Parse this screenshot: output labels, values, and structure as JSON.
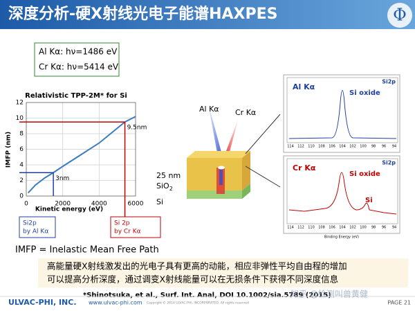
{
  "header": {
    "title": "深度分析-硬X射线光电子能谱HAXPES"
  },
  "energies": [
    "Al Kα: hν=1486 eV",
    "Cr Kα: hν=5414 eV"
  ],
  "imfp_chart": {
    "title": "Relativistic TPP-2M* for Si",
    "x_label": "Kinetic energy (eV)",
    "y_label": "IMFP (nm)",
    "x": [
      100,
      500,
      1000,
      1486,
      2000,
      3000,
      4000,
      5414,
      6000
    ],
    "y": [
      0.4,
      1.4,
      2.3,
      3.0,
      3.8,
      5.3,
      6.8,
      9.5,
      10.2
    ],
    "xlim": [
      0,
      6000
    ],
    "ylim": [
      0,
      12
    ],
    "xticks": [
      0,
      2000,
      4000,
      6000
    ],
    "yticks": [
      0,
      2,
      4,
      6,
      8,
      10,
      12
    ],
    "annotations": [
      {
        "label": "3nm",
        "x": 1486,
        "y": 3,
        "color": "#1f3f9f"
      },
      {
        "label": "9.5nm",
        "x": 5414,
        "y": 9.5,
        "color": "#c00000"
      }
    ]
  },
  "boxes": [
    {
      "lines": [
        "Si2p",
        "by Al Kα"
      ],
      "color": "#1f3f9f"
    },
    {
      "lines": [
        "Si 2p",
        "by Cr Kα"
      ],
      "color": "#c00000"
    }
  ],
  "diagram": {
    "beams": [
      "Al Kα",
      "Cr Kα"
    ],
    "thickness": "25 nm",
    "layer": "SiO",
    "layer_sub": "2",
    "substrate": "Si"
  },
  "spectra": [
    {
      "source": "Al Kα",
      "tag": "Si2p",
      "peaks": [
        "Si oxide"
      ]
    },
    {
      "source": "Cr Kα",
      "tag": "Si2p",
      "peaks": [
        "Si oxide",
        "Si"
      ]
    }
  ],
  "spectra_axis": {
    "ticks": [
      "114",
      "112",
      "110",
      "108",
      "106",
      "104",
      "102",
      "100",
      "98",
      "96",
      "94"
    ],
    "label": "Binding Energy (eV)"
  },
  "definition": "IMFP = Inelastic Mean Free Path",
  "note": [
    "高能量硬X射线激发出的光电子具有更高的动能，相应非弹性平均自由程的增加",
    "可以提高分析深度，通过调变X射线能量可以在无损条件下获得不同深度信息"
  ],
  "reference": "*Shinotsuka, et al., Surf. Int. Anal, DOI 10.1002/sia.5789 (2015)",
  "footer": {
    "company": "ULVAC-PHI, INC.",
    "website": "www.ulvac-phi.com",
    "copyright": "Copyright © 2014 ULVAC-PHI, INCORPORATED. All rights reserved",
    "page": "PAGE 21",
    "watermark": "知乎 @检测叫兽黄健"
  }
}
